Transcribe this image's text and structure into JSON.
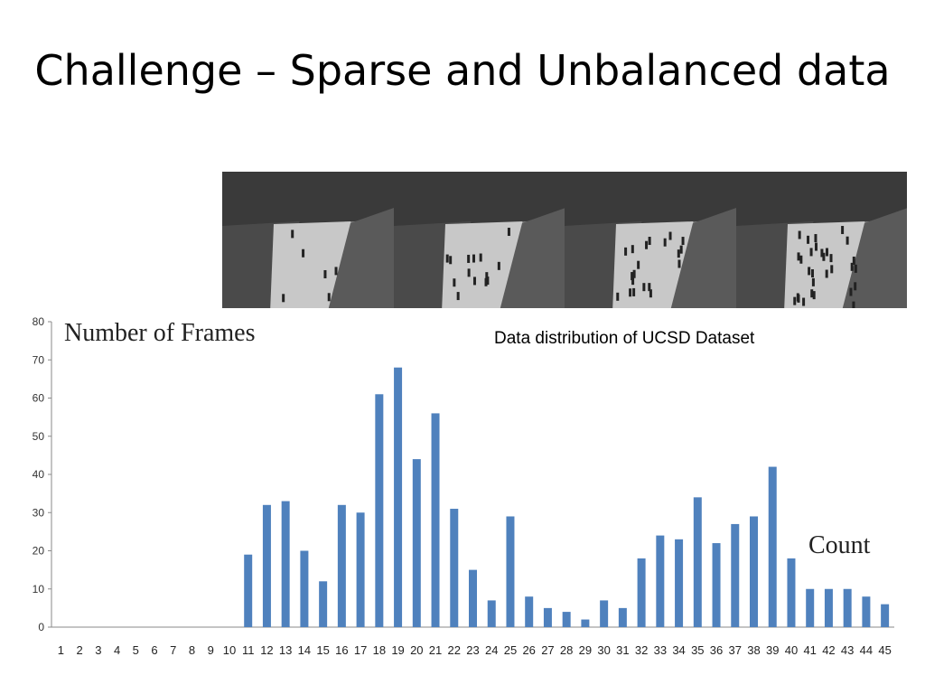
{
  "slide": {
    "title": "Challenge – Sparse and Unbalanced data"
  },
  "photos": [
    {
      "name": "crowd-frame-1"
    },
    {
      "name": "crowd-frame-2"
    },
    {
      "name": "crowd-frame-3"
    },
    {
      "name": "crowd-frame-4"
    }
  ],
  "chart_data": {
    "type": "bar",
    "title": "Data distribution of UCSD Dataset",
    "xlabel": "Count",
    "ylabel": "Number of Frames",
    "categories": [
      "1",
      "2",
      "3",
      "4",
      "5",
      "6",
      "7",
      "8",
      "9",
      "10",
      "11",
      "12",
      "13",
      "14",
      "15",
      "16",
      "17",
      "18",
      "19",
      "20",
      "21",
      "22",
      "23",
      "24",
      "25",
      "26",
      "27",
      "28",
      "29",
      "30",
      "31",
      "32",
      "33",
      "34",
      "35",
      "36",
      "37",
      "38",
      "39",
      "40",
      "41",
      "42",
      "43",
      "44",
      "45"
    ],
    "values": [
      0,
      0,
      0,
      0,
      0,
      0,
      0,
      0,
      0,
      0,
      19,
      32,
      33,
      20,
      12,
      32,
      30,
      61,
      68,
      44,
      56,
      31,
      15,
      7,
      29,
      8,
      5,
      4,
      2,
      7,
      5,
      18,
      24,
      23,
      34,
      22,
      27,
      29,
      42,
      18,
      10,
      10,
      10,
      8,
      6
    ],
    "ylim": [
      0,
      80
    ],
    "yticks": [
      0,
      10,
      20,
      30,
      40,
      50,
      60,
      70,
      80
    ],
    "bar_color": "#4f81bd",
    "grid": false,
    "legend": "none"
  }
}
